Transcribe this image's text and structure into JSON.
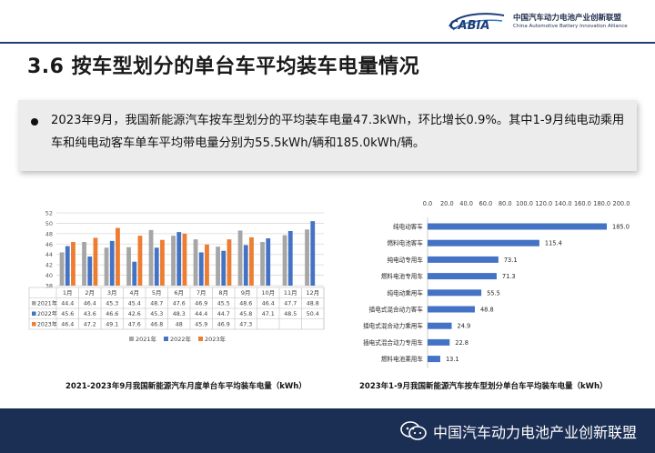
{
  "header": {
    "logo_text": "CABIA",
    "org_cn": "中国汽车动力电池产业创新联盟",
    "org_en": "China Automotive Battery Innovation Alliance"
  },
  "page_title": "3.6 按车型划分的单台车平均装车电量情况",
  "summary": {
    "text": "2023年9月，我国新能源汽车按车型划分的平均装车电量47.3kWh，环比增长0.9%。其中1-9月纯电动乘用车和纯电动客车单车平均带电量分别为55.5kWh/辆和185.0kWh/辆。"
  },
  "chart_data": [
    {
      "type": "bar",
      "title": "2021-2023年9月我国新能源汽车月度单台车平均装车电量（kWh）",
      "categories": [
        "1月",
        "2月",
        "3月",
        "4月",
        "5月",
        "6月",
        "7月",
        "8月",
        "9月",
        "10月",
        "11月",
        "12月"
      ],
      "series": [
        {
          "name": "2021年",
          "color": "#a6a6a6",
          "values": [
            44.4,
            46.4,
            45.3,
            45.4,
            48.7,
            47.6,
            46.9,
            45.5,
            48.6,
            46.4,
            47.7,
            48.8
          ]
        },
        {
          "name": "2022年",
          "color": "#4472c4",
          "values": [
            45.6,
            43.6,
            46.6,
            42.6,
            45.3,
            48.3,
            44.4,
            44.7,
            45.8,
            47.1,
            48.5,
            50.4
          ]
        },
        {
          "name": "2023年",
          "color": "#ed7d31",
          "values": [
            46.4,
            47.2,
            49.1,
            47.6,
            46.8,
            48,
            45.9,
            46.9,
            47.3,
            null,
            null,
            null
          ]
        }
      ],
      "ylim": [
        38,
        52
      ],
      "yticks": [
        38,
        40,
        42,
        44,
        46,
        48,
        50,
        52
      ],
      "grid": true,
      "legend": "bottom"
    },
    {
      "type": "bar",
      "orientation": "horizontal",
      "title": "2023年1-9月我国新能源汽车按车型划分单台车平均装车电量（kWh）",
      "categories": [
        "纯电动客车",
        "燃料电池客车",
        "纯电动专用车",
        "燃料电池专用车",
        "纯电动乘用车",
        "插电式混合动力客车",
        "插电式混合动力乘用车",
        "插电式混合动力专用车",
        "燃料电池乘用车"
      ],
      "values": [
        185.0,
        115.4,
        73.1,
        71.3,
        55.5,
        48.8,
        24.9,
        22.8,
        13.1
      ],
      "value_labels": [
        "185.0",
        "115.4",
        "73.1",
        "71.3",
        "55.5",
        "48.8",
        "24.9",
        "22.8",
        "13.1"
      ],
      "color": "#4472c4",
      "xlim": [
        0,
        200
      ],
      "xticks": [
        "0.0",
        "20.0",
        "40.0",
        "60.0",
        "80.0",
        "100.0",
        "120.0",
        "140.0",
        "160.0",
        "180.0",
        "200.0"
      ],
      "axis_position": "top"
    }
  ],
  "footer": {
    "text": "中国汽车动力电池产业创新联盟",
    "icon": "wechat-icon"
  }
}
